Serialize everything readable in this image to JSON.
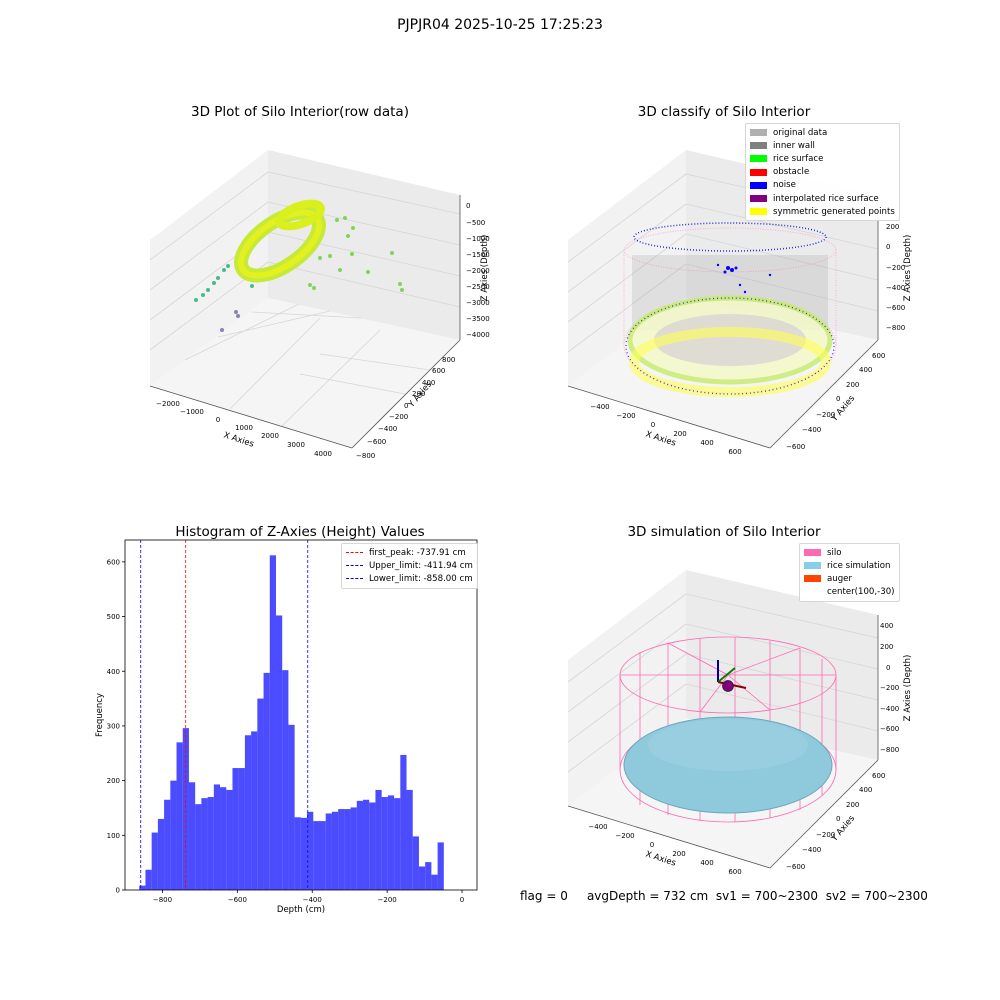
{
  "suptitle": "PJPJR04 2025-10-25 17:25:23",
  "panels": {
    "raw": {
      "title": "3D Plot of Silo Interior(row data)",
      "xlabel": "X Axies",
      "ylabel": "Y Axies",
      "zlabel": "Z Axies (Depth)",
      "xticks": [
        "−2000",
        "−1000",
        "0",
        "1000",
        "2000",
        "3000",
        "4000"
      ],
      "yticks": [
        "−800",
        "−600",
        "−400",
        "−200",
        "0",
        "200",
        "400",
        "600",
        "800"
      ],
      "zticks": [
        "0",
        "−500",
        "−1000",
        "−1500",
        "−2000",
        "−2500",
        "−3000",
        "−3500",
        "−4000"
      ]
    },
    "classify": {
      "title": "3D classify of Silo Interior",
      "xlabel": "X Axies",
      "ylabel": "Y Axies",
      "zlabel": "Z Axies (Depth)",
      "xticks": [
        "−400",
        "−200",
        "0",
        "200",
        "400",
        "600"
      ],
      "yticks": [
        "−600",
        "−400",
        "−200",
        "0",
        "200",
        "400",
        "600"
      ],
      "zticks": [
        "200",
        "0",
        "−200",
        "−400",
        "−600",
        "−800"
      ],
      "legend": [
        {
          "label": "original data",
          "color": "#b0b0b0"
        },
        {
          "label": "inner wall",
          "color": "#808080"
        },
        {
          "label": "rice surface",
          "color": "#00ff00"
        },
        {
          "label": "obstacle",
          "color": "#ff0000"
        },
        {
          "label": "noise",
          "color": "#0000ff"
        },
        {
          "label": "interpolated rice surface",
          "color": "#800080"
        },
        {
          "label": "symmetric generated points",
          "color": "#ffff00"
        }
      ]
    },
    "simulation": {
      "title": "3D simulation of Silo Interior",
      "xlabel": "X Axies",
      "ylabel": "Y Axies",
      "zlabel": "Z Axies (Depth)",
      "xticks": [
        "−400",
        "−200",
        "0",
        "200",
        "400",
        "600"
      ],
      "yticks": [
        "−600",
        "−400",
        "−200",
        "0",
        "200",
        "400",
        "600"
      ],
      "zticks": [
        "400",
        "200",
        "0",
        "−200",
        "−400",
        "−600",
        "−800"
      ],
      "legend": [
        {
          "label": "silo",
          "color": "#ff69b4"
        },
        {
          "label": "rice simulation",
          "color": "#87ceeb"
        },
        {
          "label": "auger",
          "color": "#ff4500"
        },
        {
          "label": "center(100,-30)",
          "color": ""
        }
      ]
    }
  },
  "status": {
    "flag": "flag = 0",
    "avg_depth": "avgDepth = 732 cm",
    "sv1": "sv1 = 700~2300",
    "sv2": "sv2 = 700~2300"
  },
  "chart_data": [
    {
      "type": "bar",
      "title": "Histogram of Z-Axies (Height) Values",
      "xlabel": "Depth (cm)",
      "ylabel": "Frequency",
      "xlim": [
        -900,
        40
      ],
      "ylim": [
        0,
        640
      ],
      "xticks": [
        -800,
        -600,
        -400,
        -200,
        0
      ],
      "xtick_labels": [
        "−800",
        "−600",
        "−400",
        "−200",
        "0"
      ],
      "yticks": [
        0,
        100,
        200,
        300,
        400,
        500,
        600
      ],
      "bar_color": "#0000ff",
      "bins_start": -862,
      "bin_width": 16.6,
      "values": [
        8,
        37,
        105,
        130,
        165,
        200,
        270,
        296,
        197,
        157,
        168,
        170,
        193,
        188,
        183,
        223,
        223,
        283,
        290,
        350,
        397,
        612,
        502,
        402,
        302,
        133,
        132,
        143,
        126,
        126,
        140,
        143,
        148,
        148,
        151,
        163,
        165,
        160,
        183,
        170,
        173,
        168,
        247,
        183,
        98,
        43,
        51,
        28,
        87
      ],
      "vlines": [
        {
          "label": "first_peak: -737.91 cm",
          "x": -737.91,
          "color": "#ff0000"
        },
        {
          "label": "Upper_limit: -411.94 cm",
          "x": -411.94,
          "color": "#0000ff"
        },
        {
          "label": "Lower_limit: -858.00 cm",
          "x": -858.0,
          "color": "#0000ff"
        }
      ]
    }
  ]
}
